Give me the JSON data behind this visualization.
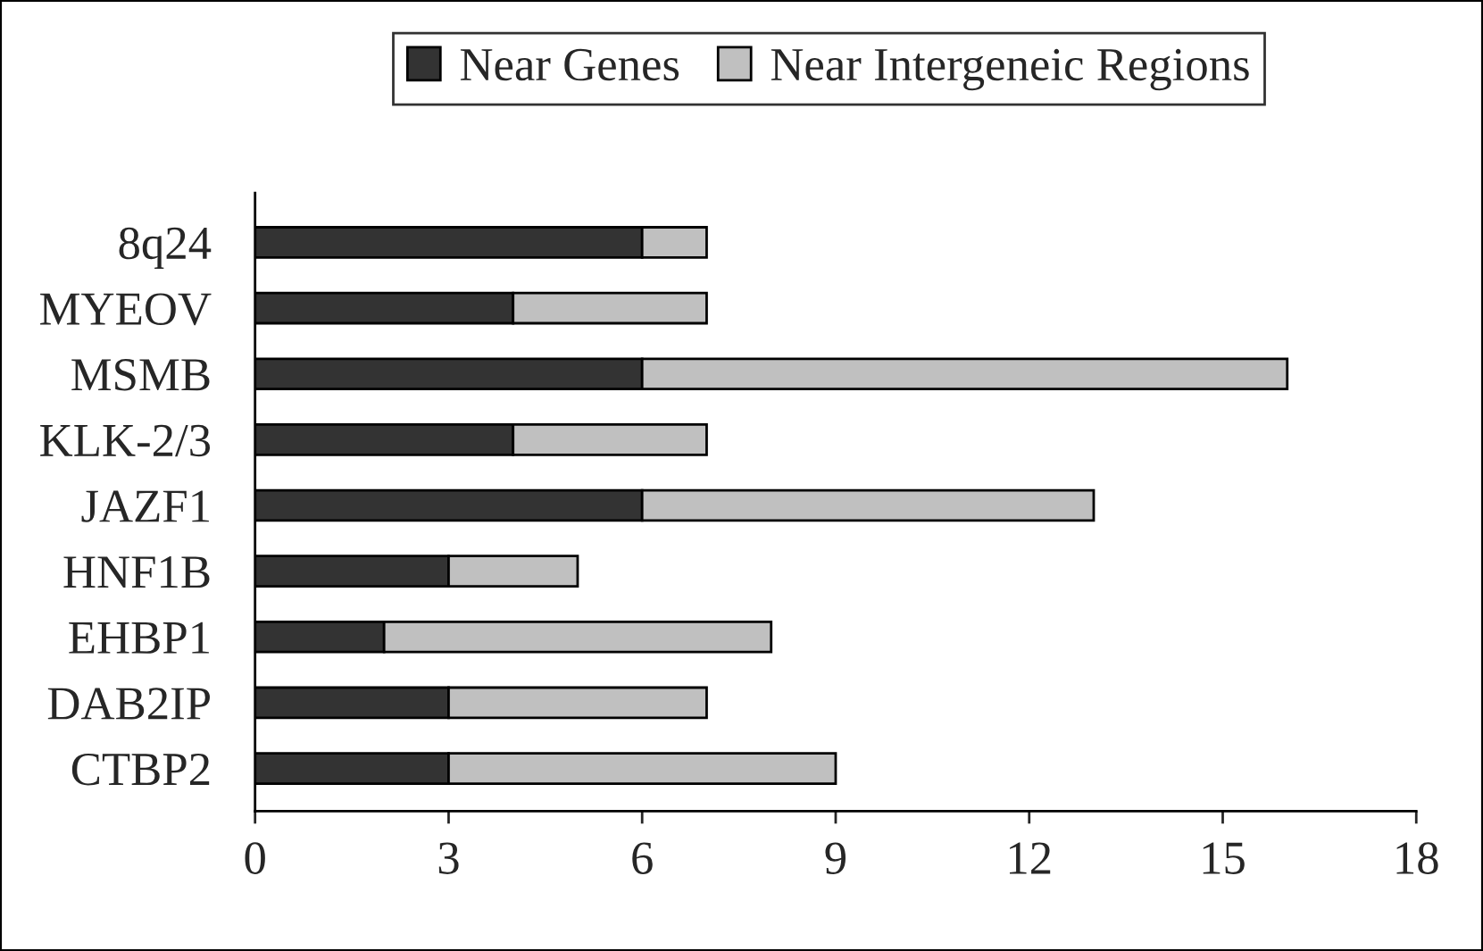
{
  "chart_data": {
    "type": "bar",
    "orientation": "horizontal",
    "stacked": true,
    "categories": [
      "8q24",
      "MYEOV",
      "MSMB",
      "KLK-2/3",
      "JAZF1",
      "HNF1B",
      "EHBP1",
      "DAB2IP",
      "CTBP2"
    ],
    "series": [
      {
        "name": "Near Genes",
        "color": "#333333",
        "values": [
          6,
          4,
          6,
          4,
          6,
          3,
          2,
          3,
          3
        ]
      },
      {
        "name": "Near Intergeneic Regions",
        "color": "#c0c0c0",
        "values": [
          1,
          3,
          10,
          3,
          7,
          2,
          6,
          4,
          6
        ]
      }
    ],
    "xlim": [
      0,
      18
    ],
    "xticks": [
      0,
      3,
      6,
      9,
      12,
      15,
      18
    ],
    "grid": false,
    "legend": "top"
  }
}
